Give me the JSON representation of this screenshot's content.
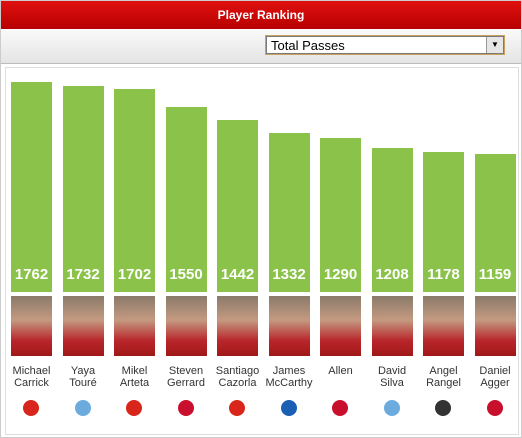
{
  "chart_data": {
    "type": "bar",
    "title": "Player Ranking",
    "selector": "Total Passes",
    "categories": [
      "Michael Carrick",
      "Yaya Touré",
      "Mikel Arteta",
      "Steven Gerrard",
      "Santiago Cazorla",
      "James McCarthy",
      "Allen",
      "David Silva",
      "Angel Rangel",
      "Daniel Agger"
    ],
    "values": [
      1762,
      1732,
      1702,
      1550,
      1442,
      1332,
      1290,
      1208,
      1178,
      1159
    ],
    "color": "#8bc34a"
  }
}
